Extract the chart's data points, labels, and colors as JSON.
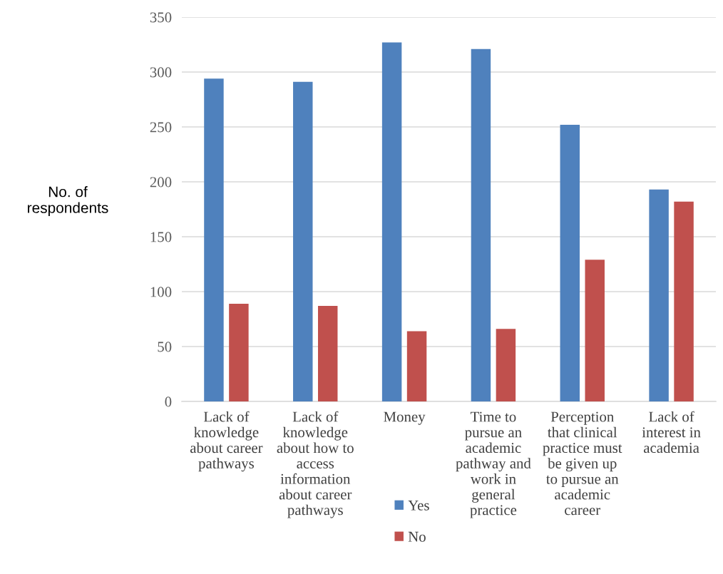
{
  "chart_data": {
    "type": "bar",
    "ylabel": "No. of respondents",
    "categories": [
      "Lack of knowledge about career pathways",
      "Lack of knowledge about how to access information about career pathways",
      "Money",
      "Time to pursue an academic pathway and work in general practice",
      "Perception that clinical practice must be given up to pursue an academic career",
      "Lack of interest in academia"
    ],
    "series": [
      {
        "name": "Yes",
        "color": "#4f81bd",
        "values": [
          294,
          291,
          327,
          321,
          252,
          193
        ]
      },
      {
        "name": "No",
        "color": "#c0504d",
        "values": [
          89,
          87,
          64,
          66,
          129,
          182
        ]
      }
    ],
    "ylim": [
      0,
      350
    ],
    "yticks": [
      0,
      50,
      100,
      150,
      200,
      250,
      300,
      350
    ],
    "grid": "y",
    "legend": "bottom"
  }
}
